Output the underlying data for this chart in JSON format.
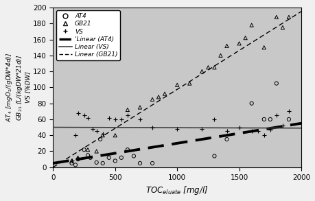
{
  "title": "",
  "xlabel": "TOC$_{eluate}$ [mg/l]",
  "ylabel": "AT$_4$ [mgO$_2$/(gDW*4d)]\nGB$_{21}$ [L/(kgDW*21d)]\nVS [%DW]",
  "xlim": [
    0,
    2000
  ],
  "ylim": [
    0,
    200
  ],
  "xticks": [
    0,
    500,
    1000,
    1500,
    2000
  ],
  "yticks": [
    0,
    20,
    40,
    60,
    80,
    100,
    120,
    140,
    160,
    180,
    200
  ],
  "plot_bg": "#c8c8c8",
  "fig_bg": "#f0f0f0",
  "AT4_x": [
    150,
    180,
    200,
    250,
    280,
    300,
    350,
    380,
    400,
    450,
    500,
    550,
    600,
    650,
    700,
    800,
    1300,
    1400,
    1600,
    1700,
    1750,
    1800,
    1900
  ],
  "AT4_y": [
    5,
    3,
    10,
    22,
    15,
    12,
    6,
    35,
    5,
    12,
    8,
    12,
    22,
    14,
    5,
    5,
    14,
    35,
    80,
    60,
    60,
    105,
    60
  ],
  "GB21_x": [
    150,
    200,
    280,
    350,
    400,
    500,
    600,
    700,
    800,
    850,
    900,
    1000,
    1100,
    1200,
    1250,
    1300,
    1350,
    1400,
    1500,
    1550,
    1600,
    1700,
    1800,
    1850,
    1900
  ],
  "GB21_y": [
    8,
    12,
    22,
    20,
    40,
    40,
    72,
    75,
    85,
    88,
    92,
    103,
    105,
    120,
    125,
    125,
    140,
    152,
    155,
    162,
    178,
    150,
    188,
    175,
    188
  ],
  "VS_x": [
    150,
    180,
    200,
    250,
    280,
    320,
    350,
    400,
    450,
    500,
    550,
    600,
    700,
    800,
    1000,
    1200,
    1300,
    1400,
    1500,
    1600,
    1650,
    1700,
    1750,
    1800,
    1850,
    1900
  ],
  "VS_y": [
    8,
    40,
    68,
    65,
    62,
    48,
    45,
    42,
    62,
    60,
    60,
    65,
    60,
    50,
    48,
    48,
    60,
    45,
    50,
    45,
    45,
    40,
    47,
    65,
    52,
    70
  ],
  "linear_AT4_x0": 0,
  "linear_AT4_x1": 2000,
  "linear_AT4_y0": 5,
  "linear_AT4_y1": 55,
  "linear_VS_x0": 0,
  "linear_VS_x1": 2000,
  "linear_VS_y0": 50,
  "linear_VS_y1": 49,
  "linear_GB21_x0": 0,
  "linear_GB21_x1": 2000,
  "linear_GB21_y0": 0,
  "linear_GB21_y1": 195,
  "legend_AT4": "AT4",
  "legend_GB21": "GB21",
  "legend_VS": "VS",
  "legend_linAT4": "'Linear (AT4)",
  "legend_linVS": "Linear (VS)",
  "legend_linGB21": "Linear (GB21)"
}
